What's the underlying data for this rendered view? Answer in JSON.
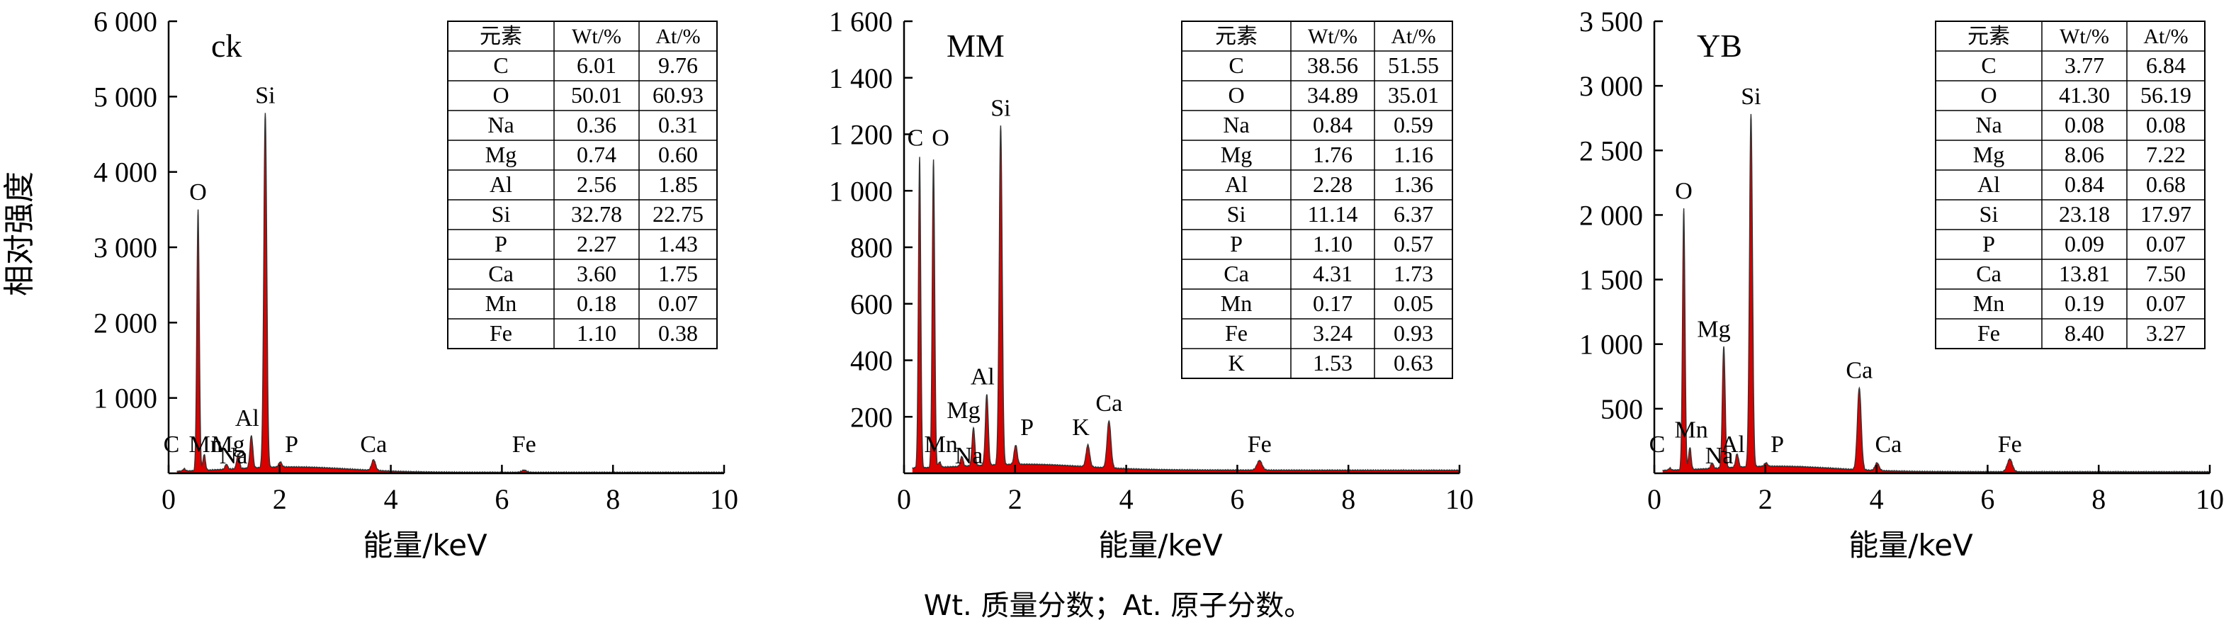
{
  "figure": {
    "ylabel": "相对强度",
    "caption": "Wt. 质量分数；At. 原子分数。"
  },
  "chart_data": [
    {
      "type": "line",
      "title": "ck",
      "xlabel": "能量/keV",
      "ylabel": "相对强度",
      "xlim": [
        0,
        10
      ],
      "ylim": [
        0,
        6000
      ],
      "xticks": [
        "0",
        "2",
        "4",
        "6",
        "8",
        "10"
      ],
      "yticks": [
        "1 000",
        "2 000",
        "3 000",
        "4 000",
        "5 000",
        "6 000"
      ],
      "peaks": [
        {
          "label": "C",
          "x": 0.28,
          "y": 60
        },
        {
          "label": "O",
          "x": 0.53,
          "y": 3500
        },
        {
          "label": "Mn",
          "x": 0.64,
          "y": 250
        },
        {
          "label": "Na",
          "x": 1.04,
          "y": 120
        },
        {
          "label": "Mg",
          "x": 1.25,
          "y": 250
        },
        {
          "label": "Al",
          "x": 1.49,
          "y": 500
        },
        {
          "label": "Si",
          "x": 1.74,
          "y": 4780
        },
        {
          "label": "P",
          "x": 2.01,
          "y": 150
        },
        {
          "label": "Ca",
          "x": 3.69,
          "y": 180
        },
        {
          "label": "Fe",
          "x": 6.4,
          "y": 40
        }
      ],
      "table": {
        "headers": [
          "元素",
          "Wt/%",
          "At/%"
        ],
        "rows": [
          [
            "C",
            "6.01",
            "9.76"
          ],
          [
            "O",
            "50.01",
            "60.93"
          ],
          [
            "Na",
            "0.36",
            "0.31"
          ],
          [
            "Mg",
            "0.74",
            "0.60"
          ],
          [
            "Al",
            "2.56",
            "1.85"
          ],
          [
            "Si",
            "32.78",
            "22.75"
          ],
          [
            "P",
            "2.27",
            "1.43"
          ],
          [
            "Ca",
            "3.60",
            "1.75"
          ],
          [
            "Mn",
            "0.18",
            "0.07"
          ],
          [
            "Fe",
            "1.10",
            "0.38"
          ]
        ]
      }
    },
    {
      "type": "line",
      "title": "MM",
      "xlabel": "能量/keV",
      "ylabel": "",
      "xlim": [
        0,
        10
      ],
      "ylim": [
        0,
        1600
      ],
      "xticks": [
        "0",
        "2",
        "4",
        "6",
        "8",
        "10"
      ],
      "yticks": [
        "200",
        "400",
        "600",
        "800",
        "1 000",
        "1 200",
        "1 400",
        "1 600"
      ],
      "peaks": [
        {
          "label": "C",
          "x": 0.28,
          "y": 1120
        },
        {
          "label": "O",
          "x": 0.53,
          "y": 1110
        },
        {
          "label": "Mn",
          "x": 0.64,
          "y": 40
        },
        {
          "label": "Na",
          "x": 1.04,
          "y": 60
        },
        {
          "label": "Mg",
          "x": 1.25,
          "y": 160
        },
        {
          "label": "Al",
          "x": 1.49,
          "y": 280
        },
        {
          "label": "Si",
          "x": 1.74,
          "y": 1230
        },
        {
          "label": "P",
          "x": 2.01,
          "y": 100
        },
        {
          "label": "K",
          "x": 3.31,
          "y": 100
        },
        {
          "label": "Ca",
          "x": 3.69,
          "y": 185
        },
        {
          "label": "Fe",
          "x": 6.4,
          "y": 45
        }
      ],
      "table": {
        "headers": [
          "元素",
          "Wt/%",
          "At/%"
        ],
        "rows": [
          [
            "C",
            "38.56",
            "51.55"
          ],
          [
            "O",
            "34.89",
            "35.01"
          ],
          [
            "Na",
            "0.84",
            "0.59"
          ],
          [
            "Mg",
            "1.76",
            "1.16"
          ],
          [
            "Al",
            "2.28",
            "1.36"
          ],
          [
            "Si",
            "11.14",
            "6.37"
          ],
          [
            "P",
            "1.10",
            "0.57"
          ],
          [
            "Ca",
            "4.31",
            "1.73"
          ],
          [
            "Mn",
            "0.17",
            "0.05"
          ],
          [
            "Fe",
            "3.24",
            "0.93"
          ],
          [
            "K",
            "1.53",
            "0.63"
          ]
        ]
      }
    },
    {
      "type": "line",
      "title": "YB",
      "xlabel": "能量/keV",
      "ylabel": "",
      "xlim": [
        0,
        10
      ],
      "ylim": [
        0,
        3500
      ],
      "xticks": [
        "0",
        "2",
        "4",
        "6",
        "8",
        "10"
      ],
      "yticks": [
        "500",
        "1 000",
        "1 500",
        "2 000",
        "2 500",
        "3 000",
        "3 500"
      ],
      "peaks": [
        {
          "label": "C",
          "x": 0.28,
          "y": 40
        },
        {
          "label": "O",
          "x": 0.53,
          "y": 2050
        },
        {
          "label": "Mn",
          "x": 0.64,
          "y": 200
        },
        {
          "label": "Na",
          "x": 1.04,
          "y": 80
        },
        {
          "label": "Mg",
          "x": 1.25,
          "y": 980
        },
        {
          "label": "Al",
          "x": 1.49,
          "y": 150
        },
        {
          "label": "Si",
          "x": 1.74,
          "y": 2780
        },
        {
          "label": "P",
          "x": 2.01,
          "y": 80
        },
        {
          "label": "Ca",
          "x": 3.69,
          "y": 660
        },
        {
          "label": "Ca",
          "x": 4.01,
          "y": 80
        },
        {
          "label": "Fe",
          "x": 6.4,
          "y": 110
        }
      ],
      "table": {
        "headers": [
          "元素",
          "Wt/%",
          "At/%"
        ],
        "rows": [
          [
            "C",
            "3.77",
            "6.84"
          ],
          [
            "O",
            "41.30",
            "56.19"
          ],
          [
            "Na",
            "0.08",
            "0.08"
          ],
          [
            "Mg",
            "8.06",
            "7.22"
          ],
          [
            "Al",
            "0.84",
            "0.68"
          ],
          [
            "Si",
            "23.18",
            "17.97"
          ],
          [
            "P",
            "0.09",
            "0.07"
          ],
          [
            "Ca",
            "13.81",
            "7.50"
          ],
          [
            "Mn",
            "0.19",
            "0.07"
          ],
          [
            "Fe",
            "8.40",
            "3.27"
          ]
        ]
      }
    }
  ],
  "colors": {
    "fill": "#d90000",
    "line": "#333333",
    "axis": "#000000"
  }
}
